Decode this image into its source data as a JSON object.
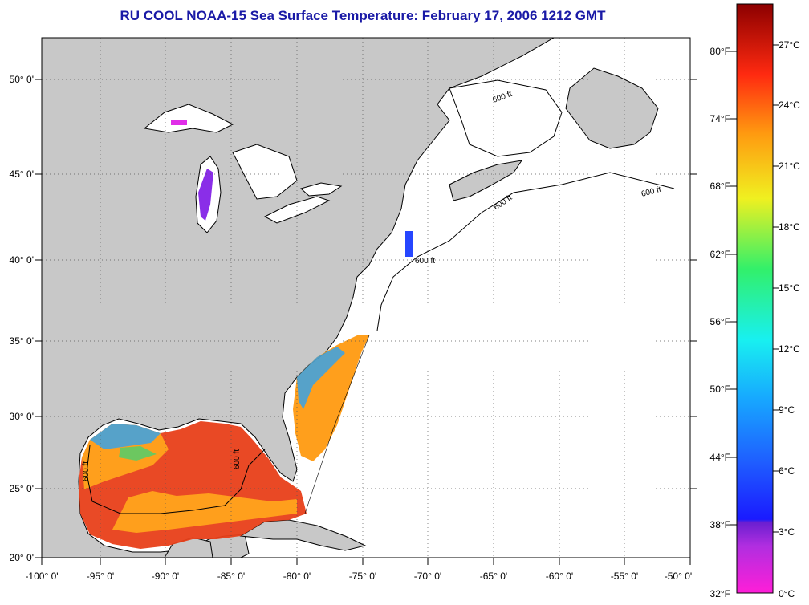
{
  "title": "RU COOL  NOAA-15  Sea Surface Temperature:  February 17, 2006 1212 GMT",
  "map": {
    "lon_ticks": [
      "-100° 0'",
      "-95° 0'",
      "-90° 0'",
      "-85° 0'",
      "-80° 0'",
      "-75° 0'",
      "-70° 0'",
      "-65° 0'",
      "-60° 0'",
      "-55° 0'",
      "-50° 0'"
    ],
    "lat_ticks": [
      "20° 0'",
      "25° 0'",
      "30° 0'",
      "35° 0'",
      "40° 0'",
      "45° 0'",
      "50° 0'"
    ],
    "contour_label": "600 ft",
    "colors": {
      "land": "#c8c8c8",
      "ocean": "#ffffff",
      "sst_warm": "#e8401a",
      "sst_mid": "#ff9a10",
      "sst_cool": "#2f9fe8",
      "lake_cold": "#8a2ee8"
    }
  },
  "colorbar": {
    "fahrenheit_labels": [
      "80°F",
      "74°F",
      "68°F",
      "62°F",
      "56°F",
      "50°F",
      "44°F",
      "38°F",
      "32°F"
    ],
    "celsius_labels": [
      "27°C",
      "24°C",
      "21°C",
      "18°C",
      "15°C",
      "12°C",
      "9°C",
      "6°C",
      "3°C",
      "0°C"
    ]
  }
}
